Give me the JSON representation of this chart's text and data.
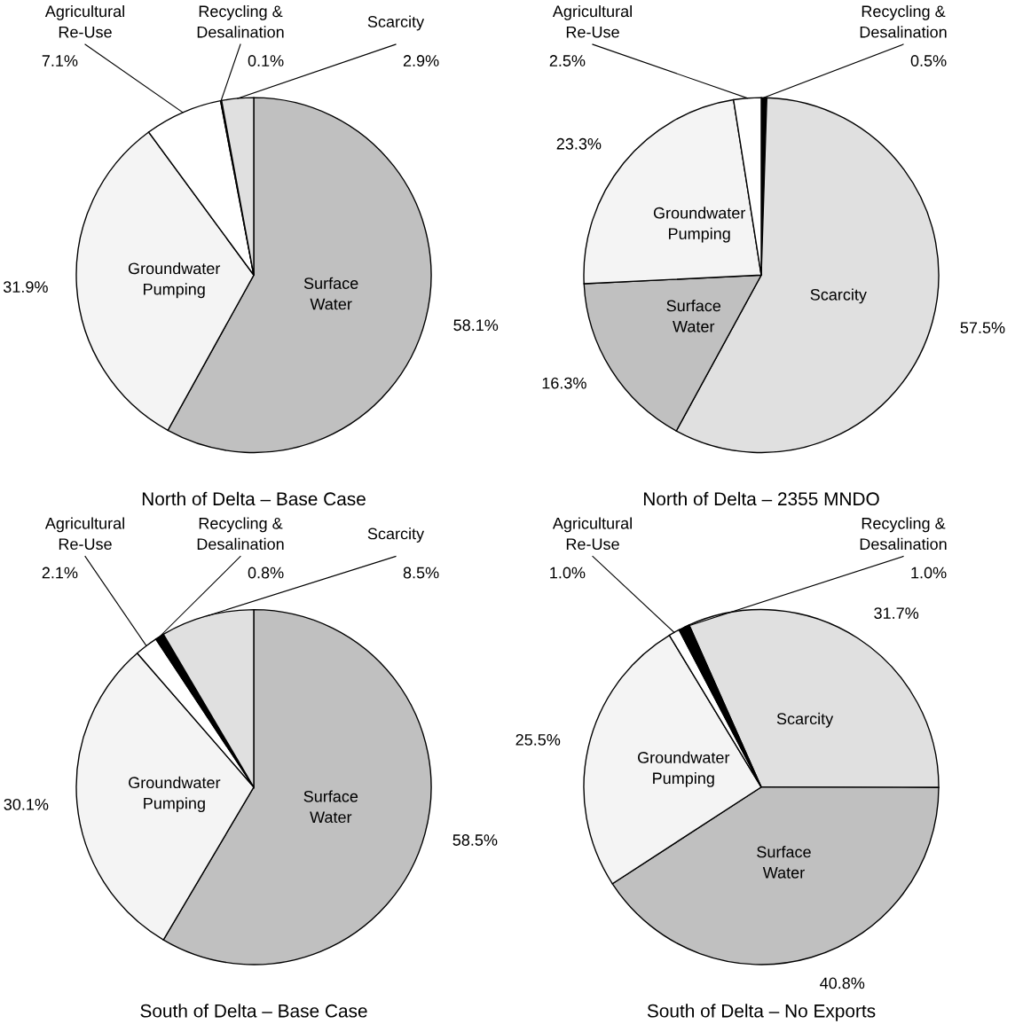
{
  "chart_data": [
    {
      "type": "pie",
      "title": "North of Delta – Base Case",
      "categories": [
        "Surface Water",
        "Groundwater Pumping",
        "Agricultural Re-Use",
        "Recycling & Desalination",
        "Scarcity"
      ],
      "values": [
        58.1,
        31.9,
        7.1,
        0.1,
        2.9
      ],
      "value_labels": [
        "58.1%",
        "31.9%",
        "7.1%",
        "0.1%",
        "2.9%"
      ],
      "colors": [
        "#c0c0c0",
        "#f4f4f4",
        "#ffffff",
        "#000000",
        "#e0e0e0"
      ]
    },
    {
      "type": "pie",
      "title": "North of Delta – 2355 MNDO",
      "categories": [
        "Recycling & Desalination",
        "Scarcity",
        "Surface Water",
        "Groundwater Pumping",
        "Agricultural Re-Use"
      ],
      "values": [
        0.5,
        57.5,
        16.3,
        23.3,
        2.5
      ],
      "value_labels": [
        "0.5%",
        "57.5%",
        "16.3%",
        "23.3%",
        "2.5%"
      ],
      "colors": [
        "#000000",
        "#e0e0e0",
        "#c0c0c0",
        "#f4f4f4",
        "#ffffff"
      ]
    },
    {
      "type": "pie",
      "title": "South of Delta – Base Case",
      "categories": [
        "Surface Water",
        "Groundwater Pumping",
        "Agricultural Re-Use",
        "Recycling & Desalination",
        "Scarcity"
      ],
      "values": [
        58.5,
        30.1,
        2.1,
        0.8,
        8.5
      ],
      "value_labels": [
        "58.5%",
        "30.1%",
        "2.1%",
        "0.8%",
        "8.5%"
      ],
      "colors": [
        "#c0c0c0",
        "#f4f4f4",
        "#ffffff",
        "#000000",
        "#e0e0e0"
      ]
    },
    {
      "type": "pie",
      "title": "South of Delta – No Exports",
      "categories": [
        "Scarcity",
        "Surface Water",
        "Groundwater Pumping",
        "Agricultural Re-Use",
        "Recycling & Desalination"
      ],
      "values": [
        31.7,
        40.8,
        25.5,
        1.0,
        1.0
      ],
      "value_labels": [
        "31.7%",
        "40.8%",
        "25.5%",
        "1.0%",
        "1.0%"
      ],
      "colors": [
        "#e0e0e0",
        "#c0c0c0",
        "#f4f4f4",
        "#ffffff",
        "#000000"
      ]
    }
  ]
}
